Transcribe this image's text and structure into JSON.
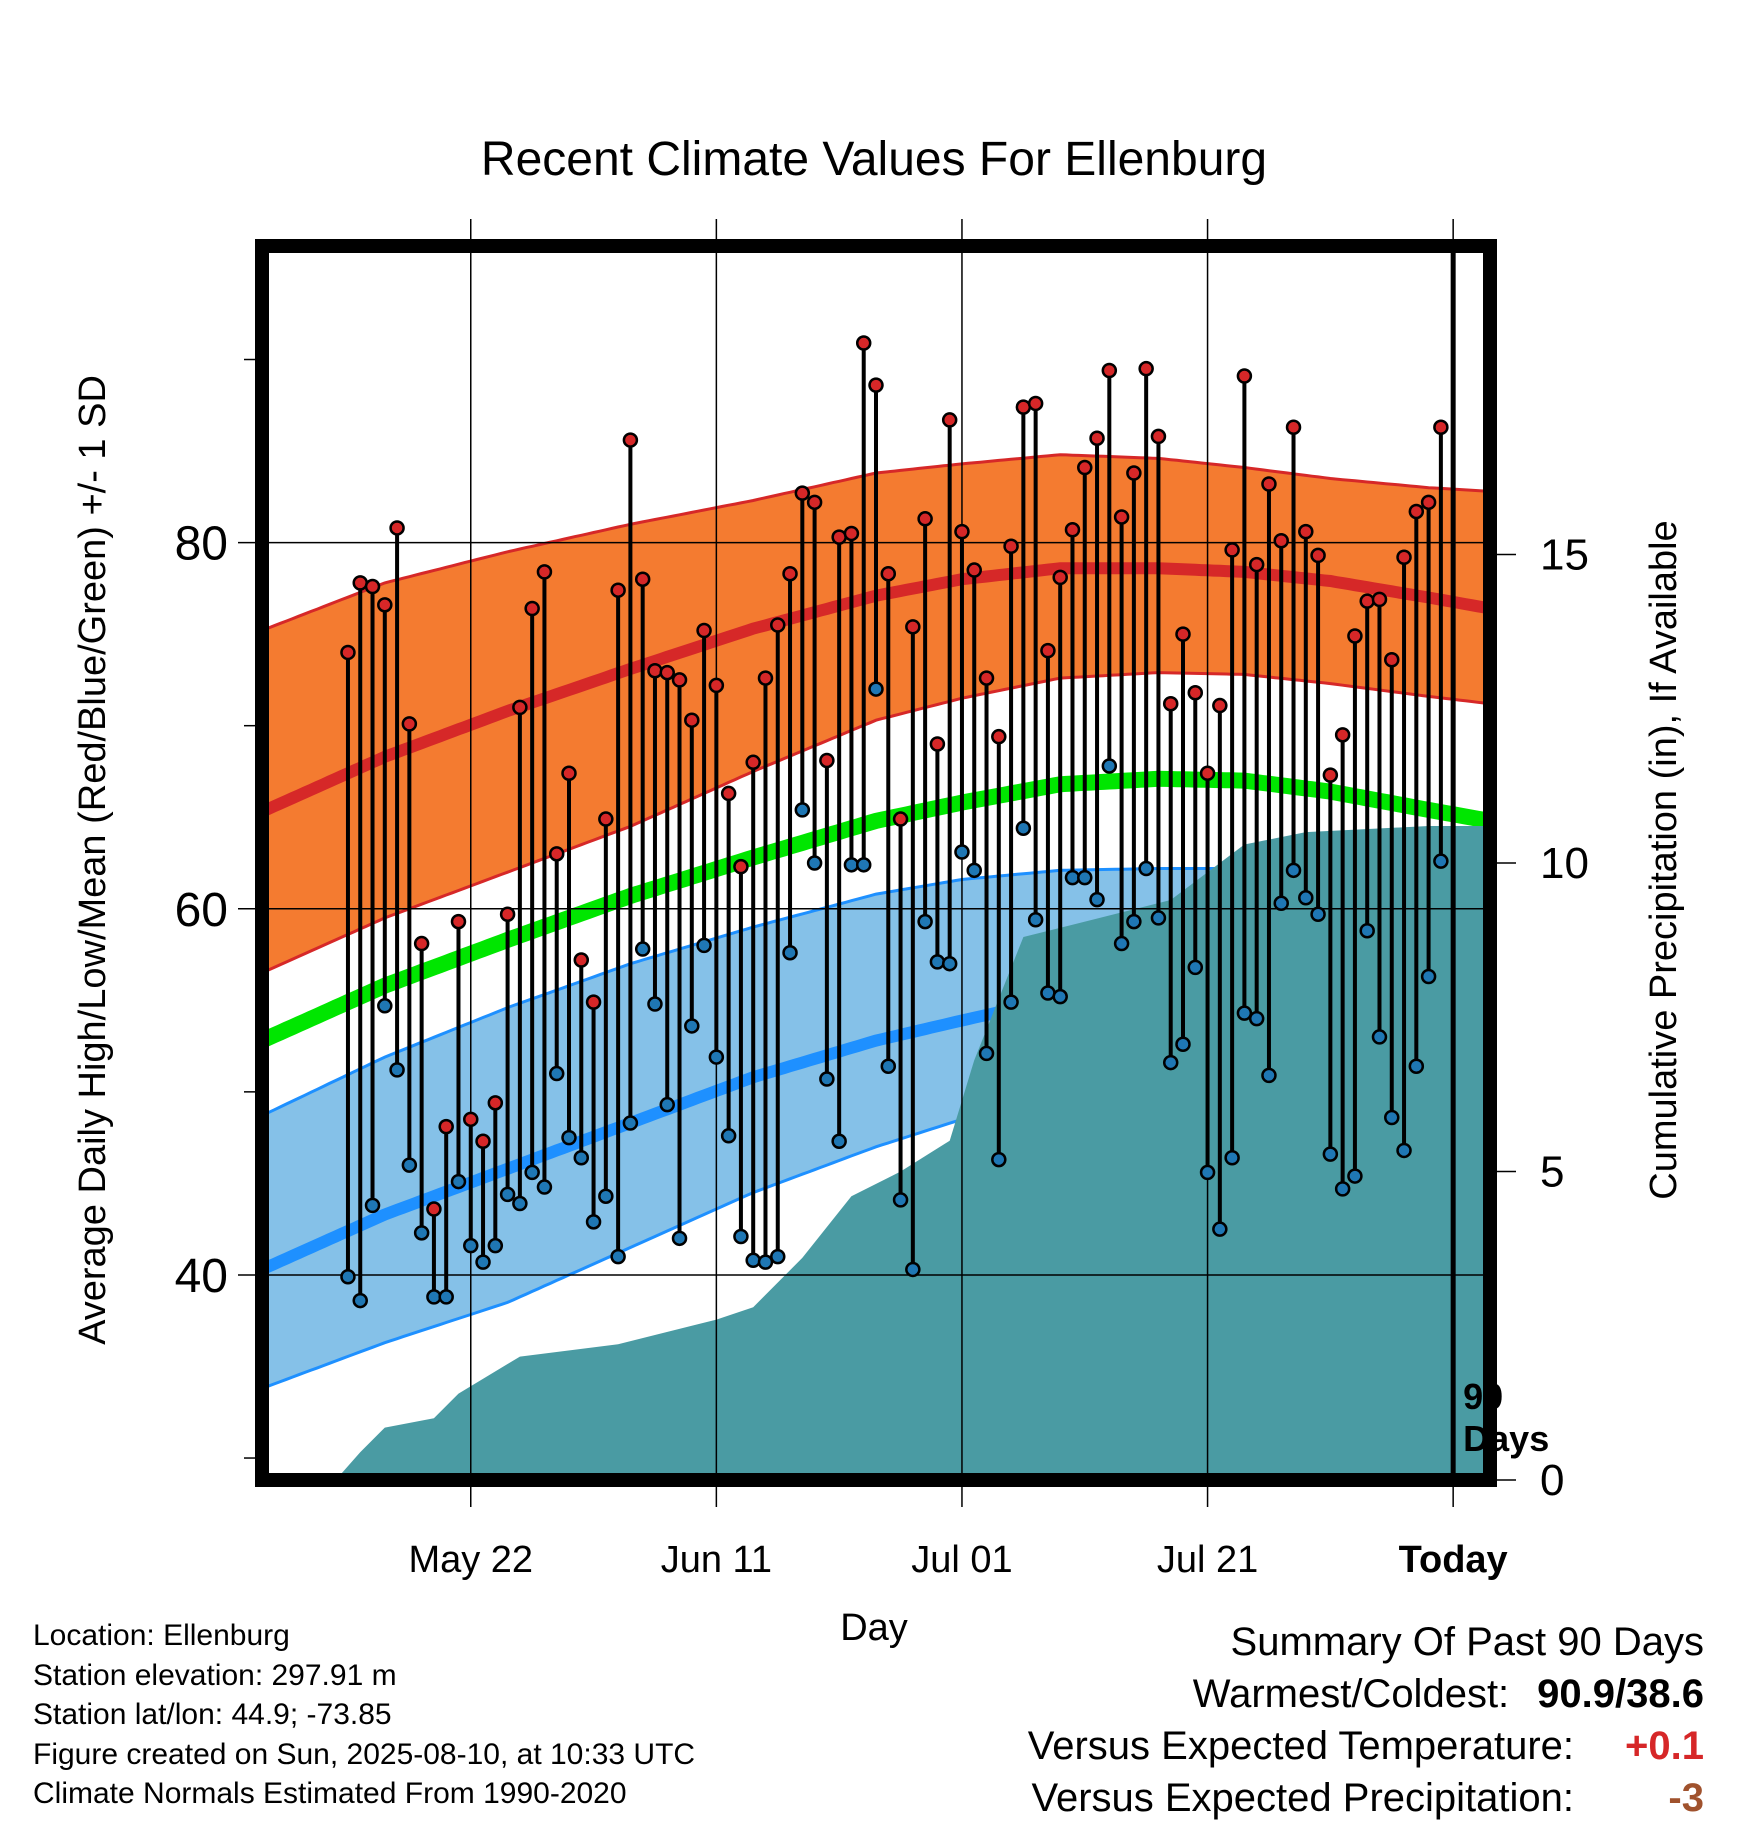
{
  "title": "Recent Climate Values For Ellenburg",
  "y_label_left": "Average Daily High/Low/Mean (Red/Blue/Green) +/- 1 SD",
  "y_label_right": "Cumulative Precipitation (in), If Available",
  "x_label": "Day",
  "today_marker_label": "90\nDays",
  "info_lines": [
    "Location: Ellenburg",
    "Station elevation: 297.91 m",
    "Station lat/lon: 44.9; -73.85",
    "Figure created on Sun, 2025-08-10, at 10:33 UTC",
    "Climate Normals Estimated From 1990-2020"
  ],
  "summary": {
    "heading": "Summary Of Past 90 Days",
    "warmest_coldest_label": "Warmest/Coldest:",
    "warmest_coldest_value": "90.9/38.6",
    "temp_label": "Versus Expected Temperature:",
    "temp_value": "+0.1",
    "precip_label": "Versus Expected Precipitation:",
    "precip_value": "-3"
  },
  "colors": {
    "high_band": "#f47b30",
    "high_line": "#d62828",
    "mean_line": "#00e600",
    "low_band": "#85c1e8",
    "low_line": "#1e90ff",
    "precip_fill": "#4a9ba3",
    "high_marker": "#d62728",
    "low_marker": "#1f77b4",
    "frame": "#000000"
  },
  "chart_data": {
    "type": "line",
    "x_type": "day",
    "xlim_days": [
      -95,
      5
    ],
    "x_ticks": [
      {
        "day": -78,
        "label": "May 22"
      },
      {
        "day": -58,
        "label": "Jun 11"
      },
      {
        "day": -38,
        "label": "Jul 01"
      },
      {
        "day": -18,
        "label": "Jul 21"
      },
      {
        "day": 2,
        "label": "Today"
      }
    ],
    "today_day": 2,
    "ylim": [
      28.8,
      96.2
    ],
    "y_ticks": [
      40,
      60,
      80
    ],
    "y_minor_ticks": [
      30,
      50,
      70,
      90
    ],
    "y2lim": [
      0,
      20
    ],
    "y2_ticks": [
      0,
      5,
      10,
      15
    ],
    "grid": true,
    "normals": {
      "x": [
        -95,
        -85,
        -75,
        -65,
        -55,
        -45,
        -38,
        -30,
        -22,
        -15,
        -8,
        0,
        5
      ],
      "high_mean": [
        65.3,
        68.3,
        70.8,
        73.1,
        75.3,
        77.1,
        78.0,
        78.6,
        78.6,
        78.4,
        77.9,
        77.0,
        76.4
      ],
      "high_sd_upper": [
        75.2,
        77.8,
        79.5,
        81.0,
        82.3,
        83.8,
        84.3,
        84.8,
        84.6,
        84.1,
        83.5,
        83.0,
        82.8
      ],
      "high_sd_lower": [
        56.5,
        59.5,
        62.0,
        64.5,
        67.5,
        70.3,
        71.5,
        72.6,
        72.9,
        72.8,
        72.3,
        71.6,
        71.2
      ],
      "mean": [
        52.8,
        55.8,
        58.3,
        60.7,
        62.8,
        64.8,
        65.8,
        66.8,
        67.1,
        67.0,
        66.4,
        65.4,
        64.8
      ],
      "low_mean": [
        40.3,
        43.3,
        45.8,
        48.3,
        50.8,
        52.8,
        53.9,
        55.1,
        55.5,
        55.4,
        54.8,
        53.8,
        53.0
      ],
      "low_sd_upper": [
        48.7,
        51.9,
        54.6,
        57.0,
        59.0,
        60.8,
        61.6,
        62.1,
        62.2,
        62.2,
        61.6,
        60.7,
        60.1
      ],
      "low_sd_lower": [
        33.8,
        36.3,
        38.5,
        41.5,
        44.5,
        47.0,
        48.5,
        49.5,
        49.9,
        49.9,
        49.5,
        48.5,
        47.5
      ]
    },
    "daily_high": [
      74.0,
      77.8,
      77.6,
      76.6,
      80.8,
      70.1,
      58.1,
      43.6,
      48.1,
      59.3,
      48.5,
      47.3,
      49.4,
      59.7,
      71.0,
      76.4,
      78.4,
      63.0,
      67.4,
      57.2,
      54.9,
      64.9,
      77.4,
      85.6,
      78.0,
      73.0,
      72.9,
      72.5,
      70.3,
      75.2,
      72.2,
      66.3,
      62.3,
      68.0,
      72.6,
      75.5,
      78.3,
      82.7,
      82.2,
      68.1,
      80.3,
      80.5,
      90.9,
      88.6,
      78.3,
      64.9,
      75.4,
      81.3,
      69.0,
      86.7,
      80.6,
      78.5,
      72.6,
      69.4,
      79.8,
      87.4,
      87.6,
      74.1,
      78.1,
      80.7,
      84.1,
      85.7,
      89.4,
      81.4,
      83.8,
      89.5,
      85.8,
      71.2,
      75.0,
      71.8,
      67.4,
      71.1,
      79.6,
      89.1,
      78.8,
      83.2,
      80.1,
      86.3,
      80.6,
      79.3,
      67.3,
      69.5,
      74.9,
      76.8,
      76.9,
      73.6,
      79.2,
      81.7,
      82.2,
      86.3
    ],
    "daily_low": [
      39.9,
      38.6,
      43.8,
      54.7,
      51.2,
      46.0,
      42.3,
      38.8,
      38.8,
      45.1,
      41.6,
      40.7,
      41.6,
      44.4,
      43.9,
      45.6,
      44.8,
      51.0,
      47.5,
      46.4,
      42.9,
      44.3,
      41.0,
      48.3,
      57.8,
      54.8,
      49.3,
      42.0,
      53.6,
      58.0,
      51.9,
      47.6,
      42.1,
      40.8,
      40.7,
      41.0,
      57.6,
      65.4,
      62.5,
      50.7,
      47.3,
      62.4,
      62.4,
      72.0,
      51.4,
      44.1,
      40.3,
      59.3,
      57.1,
      57.0,
      63.1,
      62.1,
      52.1,
      46.3,
      54.9,
      64.4,
      59.4,
      55.4,
      55.2,
      61.7,
      61.7,
      60.5,
      67.8,
      58.1,
      59.3,
      62.2,
      59.5,
      51.6,
      52.6,
      56.8,
      45.6,
      42.5,
      46.4,
      54.3,
      54.0,
      50.9,
      60.3,
      62.1,
      60.6,
      59.7,
      46.6,
      44.7,
      45.4,
      58.8,
      53.0,
      48.6,
      46.8,
      51.4,
      56.3,
      62.6
    ],
    "precip_cumulative": {
      "day": [
        -95,
        -91,
        -89,
        -87,
        -85,
        -81,
        -79,
        -74,
        -66,
        -60,
        -58,
        -55,
        -51,
        -47,
        -43,
        -39,
        -37,
        -33,
        -29,
        -21,
        -15,
        -10,
        0,
        5
      ],
      "value": [
        0,
        0,
        0,
        0.45,
        0.85,
        1.0,
        1.4,
        2.0,
        2.2,
        2.5,
        2.6,
        2.8,
        3.6,
        4.6,
        5.0,
        5.5,
        6.8,
        8.8,
        9.0,
        9.4,
        10.3,
        10.5,
        10.6,
        10.6
      ]
    }
  }
}
